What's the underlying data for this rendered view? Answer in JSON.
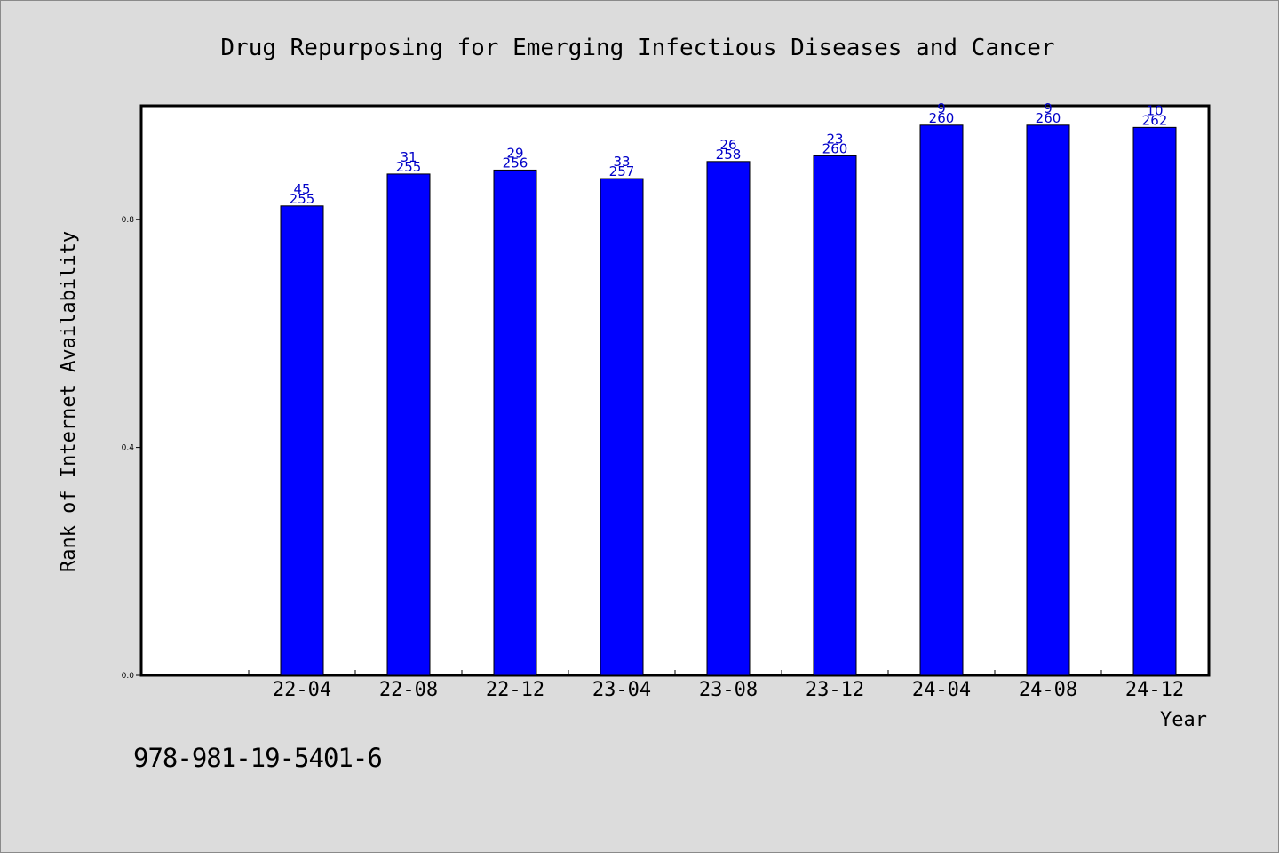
{
  "chart_data": {
    "type": "bar",
    "title": "Drug Repurposing for Emerging Infectious Diseases and Cancer",
    "xlabel": "Year",
    "ylabel": "Rank of Internet Availability",
    "categories": [
      "22-04",
      "22-08",
      "22-12",
      "23-04",
      "23-08",
      "23-12",
      "24-04",
      "24-08",
      "24-12"
    ],
    "values": [
      0.824,
      0.88,
      0.887,
      0.872,
      0.902,
      0.912,
      0.966,
      0.966,
      0.962
    ],
    "rank": [
      "45",
      "31",
      "29",
      "33",
      "26",
      "23",
      "9",
      "9",
      "10"
    ],
    "total": [
      "255",
      "255",
      "256",
      "257",
      "258",
      "260",
      "260",
      "260",
      "262"
    ],
    "y_ticks": [
      "0.0",
      "0.4",
      "0.8"
    ],
    "ylim": [
      0,
      1.0
    ],
    "bar_color": "#0000ff",
    "label_color": "#0000c8",
    "grid": false,
    "legend": "none"
  },
  "isbn": "978-981-19-5401-6"
}
